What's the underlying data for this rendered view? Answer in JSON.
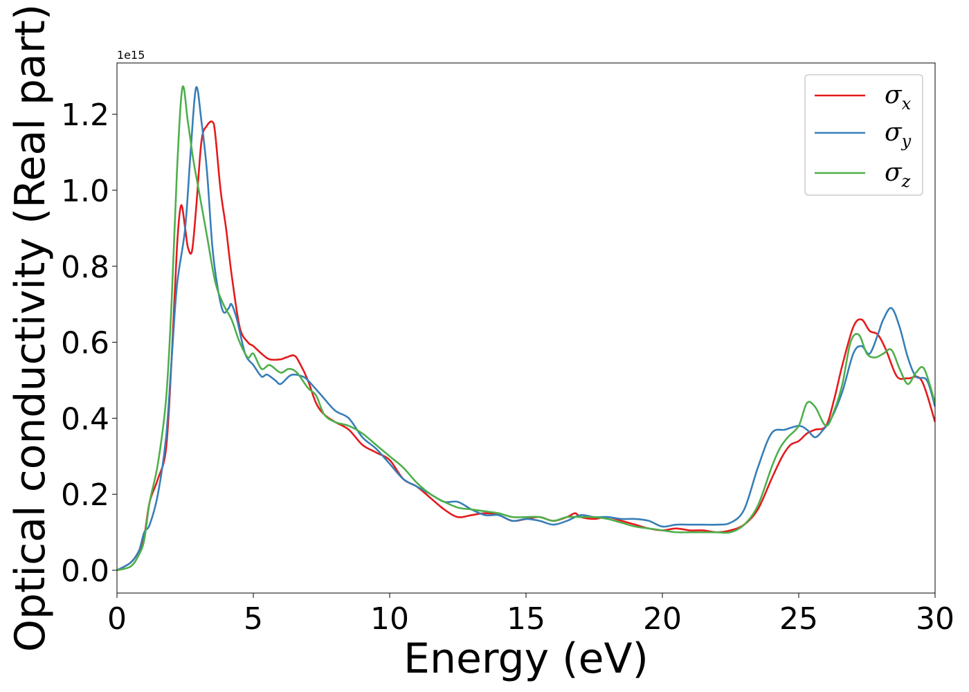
{
  "chart_data": {
    "type": "line",
    "xlabel": "Energy (eV)",
    "ylabel": "Optical conductivity (Real part)",
    "y_offset_label": "1e15",
    "y_scale_factor": 1000000000000000.0,
    "xlim": [
      0,
      30
    ],
    "ylim": [
      -0.06,
      1.335
    ],
    "x_ticks": [
      0,
      5,
      10,
      15,
      20,
      25,
      30
    ],
    "x_tick_labels": [
      "0",
      "5",
      "10",
      "15",
      "20",
      "25",
      "30"
    ],
    "y_ticks": [
      0.0,
      0.2,
      0.4,
      0.6,
      0.8,
      1.0,
      1.2
    ],
    "y_tick_labels": [
      "0.0",
      "0.2",
      "0.4",
      "0.6",
      "0.8",
      "1.0",
      "1.2"
    ],
    "grid": false,
    "legend_position": "top-right",
    "series": [
      {
        "name": "σx",
        "symbol": "σ",
        "subscript": "x",
        "color": "#e41a1c",
        "x": [
          0,
          0.5,
          0.8,
          1.0,
          1.2,
          1.5,
          1.8,
          2.0,
          2.2,
          2.35,
          2.5,
          2.6,
          2.75,
          2.9,
          3.1,
          3.3,
          3.5,
          3.6,
          3.8,
          4.0,
          4.2,
          4.5,
          4.8,
          5.0,
          5.3,
          5.6,
          6.0,
          6.2,
          6.5,
          6.7,
          7.0,
          7.3,
          7.6,
          8.0,
          8.5,
          9.0,
          9.5,
          10.0,
          10.5,
          11.0,
          11.5,
          12.0,
          12.5,
          13.0,
          13.5,
          14.0,
          14.5,
          15.0,
          15.5,
          16.0,
          16.5,
          16.8,
          17.0,
          17.5,
          18.0,
          18.5,
          19.0,
          19.5,
          20.0,
          20.5,
          21.0,
          21.5,
          22.0,
          22.5,
          23.0,
          23.5,
          24.0,
          24.4,
          24.7,
          25.0,
          25.3,
          25.6,
          26.0,
          26.3,
          26.6,
          27.0,
          27.3,
          27.6,
          27.9,
          28.2,
          28.6,
          29.0,
          29.5,
          30.0
        ],
        "y": [
          0.0,
          0.02,
          0.05,
          0.09,
          0.18,
          0.24,
          0.32,
          0.55,
          0.85,
          0.96,
          0.9,
          0.85,
          0.84,
          0.95,
          1.13,
          1.17,
          1.18,
          1.15,
          1.0,
          0.9,
          0.78,
          0.64,
          0.6,
          0.59,
          0.57,
          0.555,
          0.555,
          0.56,
          0.565,
          0.545,
          0.5,
          0.44,
          0.41,
          0.39,
          0.37,
          0.33,
          0.31,
          0.29,
          0.24,
          0.22,
          0.19,
          0.16,
          0.14,
          0.145,
          0.15,
          0.145,
          0.13,
          0.135,
          0.14,
          0.13,
          0.14,
          0.15,
          0.14,
          0.135,
          0.14,
          0.13,
          0.12,
          0.11,
          0.105,
          0.11,
          0.105,
          0.105,
          0.1,
          0.105,
          0.12,
          0.16,
          0.24,
          0.3,
          0.33,
          0.34,
          0.36,
          0.37,
          0.38,
          0.45,
          0.54,
          0.64,
          0.66,
          0.63,
          0.62,
          0.58,
          0.51,
          0.505,
          0.5,
          0.39
        ]
      },
      {
        "name": "σy",
        "symbol": "σ",
        "subscript": "y",
        "color": "#377eb8",
        "x": [
          0,
          0.5,
          0.8,
          1.0,
          1.2,
          1.5,
          1.8,
          2.0,
          2.2,
          2.5,
          2.7,
          2.9,
          3.1,
          3.3,
          3.5,
          3.7,
          3.9,
          4.1,
          4.2,
          4.4,
          4.7,
          5.0,
          5.3,
          5.5,
          5.8,
          6.0,
          6.3,
          6.5,
          6.8,
          7.0,
          7.5,
          8.0,
          8.5,
          9.0,
          9.5,
          10.0,
          10.5,
          11.0,
          11.5,
          12.0,
          12.5,
          13.0,
          13.5,
          14.0,
          14.5,
          15.0,
          15.5,
          16.0,
          16.5,
          17.0,
          17.5,
          18.0,
          18.5,
          19.0,
          19.5,
          20.0,
          20.5,
          21.0,
          21.5,
          22.0,
          22.5,
          23.0,
          23.5,
          24.0,
          24.5,
          25.0,
          25.3,
          25.6,
          25.9,
          26.2,
          26.6,
          27.0,
          27.3,
          27.6,
          27.9,
          28.1,
          28.4,
          28.7,
          29.0,
          29.3,
          29.7,
          30.0
        ],
        "y": [
          0.0,
          0.02,
          0.05,
          0.1,
          0.12,
          0.2,
          0.35,
          0.55,
          0.75,
          0.9,
          1.1,
          1.27,
          1.18,
          1.05,
          0.85,
          0.74,
          0.68,
          0.69,
          0.7,
          0.66,
          0.57,
          0.54,
          0.51,
          0.515,
          0.5,
          0.49,
          0.51,
          0.515,
          0.51,
          0.5,
          0.46,
          0.42,
          0.4,
          0.35,
          0.32,
          0.28,
          0.24,
          0.22,
          0.2,
          0.18,
          0.18,
          0.16,
          0.145,
          0.145,
          0.13,
          0.135,
          0.13,
          0.12,
          0.13,
          0.145,
          0.14,
          0.14,
          0.135,
          0.135,
          0.13,
          0.115,
          0.12,
          0.12,
          0.12,
          0.12,
          0.125,
          0.16,
          0.27,
          0.36,
          0.37,
          0.38,
          0.37,
          0.35,
          0.37,
          0.4,
          0.47,
          0.57,
          0.59,
          0.57,
          0.62,
          0.66,
          0.69,
          0.64,
          0.56,
          0.51,
          0.5,
          0.43
        ]
      },
      {
        "name": "σz",
        "symbol": "σ",
        "subscript": "z",
        "color": "#4daf4a",
        "x": [
          0,
          0.5,
          0.8,
          1.0,
          1.2,
          1.5,
          1.8,
          2.0,
          2.2,
          2.4,
          2.6,
          2.8,
          3.0,
          3.3,
          3.6,
          3.9,
          4.2,
          4.5,
          4.8,
          5.0,
          5.3,
          5.6,
          6.0,
          6.3,
          6.6,
          7.0,
          7.3,
          7.6,
          8.0,
          8.5,
          9.0,
          9.5,
          10.0,
          10.5,
          11.0,
          11.5,
          12.0,
          12.5,
          13.0,
          13.5,
          14.0,
          14.5,
          15.0,
          15.5,
          16.0,
          16.5,
          17.0,
          17.5,
          18.0,
          18.5,
          19.0,
          19.5,
          20.0,
          20.5,
          21.0,
          21.5,
          22.0,
          22.5,
          23.0,
          23.5,
          24.0,
          24.3,
          24.6,
          25.0,
          25.3,
          25.6,
          26.0,
          26.3,
          26.6,
          26.9,
          27.2,
          27.5,
          27.8,
          28.1,
          28.4,
          28.7,
          29.0,
          29.3,
          29.6,
          30.0
        ],
        "y": [
          0.0,
          0.01,
          0.04,
          0.08,
          0.18,
          0.28,
          0.45,
          0.7,
          1.05,
          1.27,
          1.18,
          1.08,
          1.0,
          0.88,
          0.76,
          0.7,
          0.66,
          0.6,
          0.56,
          0.57,
          0.53,
          0.54,
          0.52,
          0.53,
          0.52,
          0.48,
          0.46,
          0.41,
          0.39,
          0.38,
          0.36,
          0.33,
          0.3,
          0.27,
          0.23,
          0.2,
          0.18,
          0.165,
          0.16,
          0.155,
          0.15,
          0.14,
          0.14,
          0.14,
          0.13,
          0.14,
          0.14,
          0.14,
          0.135,
          0.125,
          0.115,
          0.11,
          0.105,
          0.1,
          0.1,
          0.1,
          0.1,
          0.1,
          0.12,
          0.17,
          0.27,
          0.32,
          0.35,
          0.38,
          0.44,
          0.43,
          0.38,
          0.42,
          0.49,
          0.6,
          0.62,
          0.57,
          0.56,
          0.57,
          0.58,
          0.53,
          0.49,
          0.52,
          0.53,
          0.44
        ]
      }
    ]
  }
}
